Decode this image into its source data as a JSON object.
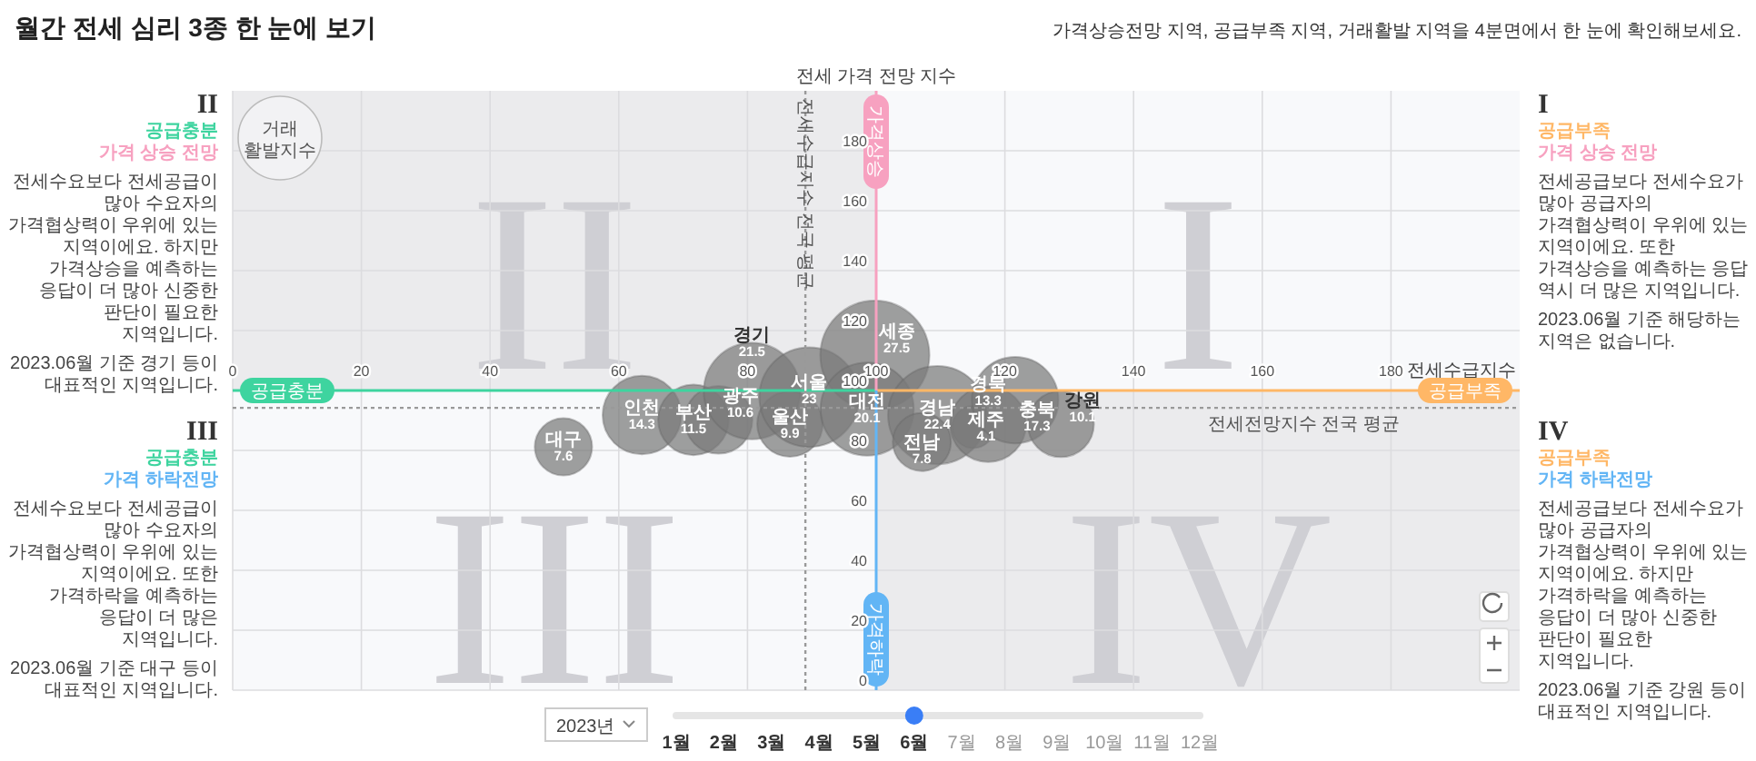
{
  "chart_data": {
    "type": "bubble",
    "title": "월간 전세 심리 3종 한 눈에 보기",
    "subtitle": "가격상승전망 지역, 공급부족 지역, 거래활발 지역을 4분면에서 한 눈에 확인해보세요.",
    "xlabel": "전세수급지수",
    "ylabel": "전세 가격 전망 지수",
    "xlim": [
      0,
      200
    ],
    "ylim": [
      0,
      200
    ],
    "xticks": [
      0,
      20,
      40,
      60,
      80,
      100,
      120,
      140,
      160,
      180
    ],
    "yticks": [
      0,
      20,
      40,
      60,
      80,
      100,
      120,
      140,
      160,
      180
    ],
    "grid": true,
    "series": [
      {
        "name": "대구",
        "color": "#7a7a7a",
        "x": [
          51.4
        ],
        "values": [
          81.2
        ],
        "sizes": [
          7.6
        ],
        "value_labels": [
          "7.6"
        ]
      },
      {
        "name": "인천",
        "color": "#7a7a7a",
        "x": [
          63.6
        ],
        "values": [
          91.8
        ],
        "sizes": [
          14.3
        ],
        "value_labels": [
          "14.3"
        ]
      },
      {
        "name": "부산",
        "color": "#7a7a7a",
        "x": [
          71.6
        ],
        "values": [
          90.2
        ],
        "sizes": [
          11.5
        ],
        "value_labels": [
          "11.5"
        ]
      },
      {
        "name": "광주",
        "color": "#7a7a7a",
        "x": [
          75.5
        ],
        "values": [
          90.2
        ],
        "sizes": [
          10.6
        ],
        "value_labels": [
          "10.6"
        ]
      },
      {
        "name": "경기",
        "color": "#7a7a7a",
        "x": [
          80.7
        ],
        "values": [
          99.8
        ],
        "sizes": [
          21.5
        ],
        "value_labels": [
          "21.5"
        ]
      },
      {
        "name": "울산",
        "color": "#7a7a7a",
        "x": [
          86.6
        ],
        "values": [
          88.8
        ],
        "sizes": [
          9.9
        ],
        "value_labels": [
          "9.9"
        ]
      },
      {
        "name": "서울",
        "color": "#7a7a7a",
        "x": [
          89.6
        ],
        "values": [
          97.8
        ],
        "sizes": [
          23
        ],
        "value_labels": [
          "23"
        ]
      },
      {
        "name": "세종",
        "color": "#7a7a7a",
        "x": [
          99.8
        ],
        "values": [
          111.8
        ],
        "sizes": [
          27.5
        ],
        "value_labels": [
          "27.5"
        ]
      },
      {
        "name": "대전",
        "color": "#7a7a7a",
        "x": [
          98.6
        ],
        "values": [
          93.8
        ],
        "sizes": [
          20.1
        ],
        "value_labels": [
          "20.1"
        ]
      },
      {
        "name": "경남",
        "color": "#7a7a7a",
        "x": [
          109.5
        ],
        "values": [
          91.8
        ],
        "sizes": [
          22.4
        ],
        "value_labels": [
          "22.4"
        ]
      },
      {
        "name": "전남",
        "color": "#7a7a7a",
        "x": [
          107.1
        ],
        "values": [
          82.8
        ],
        "sizes": [
          7.8
        ],
        "value_labels": [
          "7.8"
        ]
      },
      {
        "name": "제주",
        "color": "#7a7a7a",
        "x": [
          115.1
        ],
        "values": [
          87.8
        ],
        "sizes": [
          4.1
        ],
        "value_labels": [
          "4.1"
        ]
      },
      {
        "name": "경북",
        "color": "#7a7a7a",
        "x": [
          117.4
        ],
        "values": [
          88.8
        ],
        "sizes": [
          13.3
        ],
        "value_labels": [
          "13.3"
        ]
      },
      {
        "name": "충북",
        "color": "#7a7a7a",
        "x": [
          121.6
        ],
        "values": [
          96.8
        ],
        "sizes": [
          17.3
        ],
        "value_labels": [
          "17.3"
        ]
      },
      {
        "name": "강원",
        "color": "#7a7a7a",
        "x": [
          128.7
        ],
        "values": [
          88.8
        ],
        "sizes": [
          10.1
        ],
        "value_labels": [
          "10.1"
        ]
      }
    ],
    "ref_lines": [
      {
        "axis": "y",
        "value": 94.2,
        "label": "전세전망지수 전국 평균",
        "color": "#999999",
        "line_style": "dotted"
      },
      {
        "axis": "x",
        "value": 89,
        "label": "전세수급지수 전국 평균",
        "color": "#999999",
        "line_style": "dotted"
      }
    ],
    "annotations": [
      "II",
      "공급충분",
      "가격 상승 전망",
      "전세수요보다 전세공급이 많아 수요자의 가격협상력이 우위에 있는 지역이에요. 하지만 가격상승을 예측하는 응답이 더 많아 신중한 판단이 필요한 지역입니다.",
      "2023.06월 기준 경기 등이 대표적인 지역입니다.",
      "III",
      "공급충분",
      "가격 하락전망",
      "전세수요보다 전세공급이 많아 수요자의 가격협상력이 우위에 있는 지역이에요. 또한 가격하락을 예측하는 응답이 더 많은 지역입니다.",
      "2023.06월 기준 대구 등이 대표적인 지역입니다.",
      "I",
      "공급부족",
      "가격 상승 전망",
      "전세공급보다 전세수요가 많아 공급자의 가격협상력이 우위에 있는 지역이에요. 또한 가격상승을 예측하는 응답 역시 더 많은 지역입니다.",
      "2023.06월 기준 해당하는 지역은 없습니다.",
      "IV",
      "공급부족",
      "가격 하락전망",
      "전세공급보다 전세수요가 많아 공급자의 가격협상력이 우위에 있는 지역이에요. 하지만 가격하락을 예측하는 응답이 더 많아 신중한 판단이 필요한 지역입니다.",
      "2023.06월 기준 강원 등이 대표적인 지역입니다.",
      "공급충분",
      "공급부족",
      "가격상승",
      "가격하락",
      "거래 활발지수",
      "II",
      "I",
      "III",
      "IV",
      "2023년",
      "1월",
      "2월",
      "3월",
      "4월",
      "5월",
      "6월",
      "7월",
      "8월",
      "9월",
      "10월",
      "11월",
      "12월"
    ]
  }
}
